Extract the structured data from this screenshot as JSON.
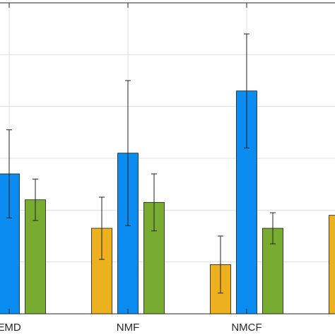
{
  "chart_data": {
    "type": "bar",
    "categories": [
      "EMD",
      "NMF",
      "NMCF",
      ""
    ],
    "ylim": [
      0,
      6
    ],
    "grid": true,
    "title": "",
    "xlabel": "",
    "ylabel": "",
    "series": [
      {
        "color": "#EDB120",
        "values": [
          null,
          1.65,
          0.95,
          1.9
        ],
        "errors": [
          null,
          0.6,
          0.55,
          null
        ]
      },
      {
        "color": "#0A8CF0",
        "values": [
          2.7,
          3.1,
          4.3,
          null
        ],
        "errors": [
          0.85,
          1.4,
          1.1,
          null
        ]
      },
      {
        "color": "#77AC30",
        "values": [
          2.2,
          2.15,
          1.65,
          null
        ],
        "errors": [
          0.4,
          0.55,
          0.3,
          null
        ]
      }
    ]
  }
}
